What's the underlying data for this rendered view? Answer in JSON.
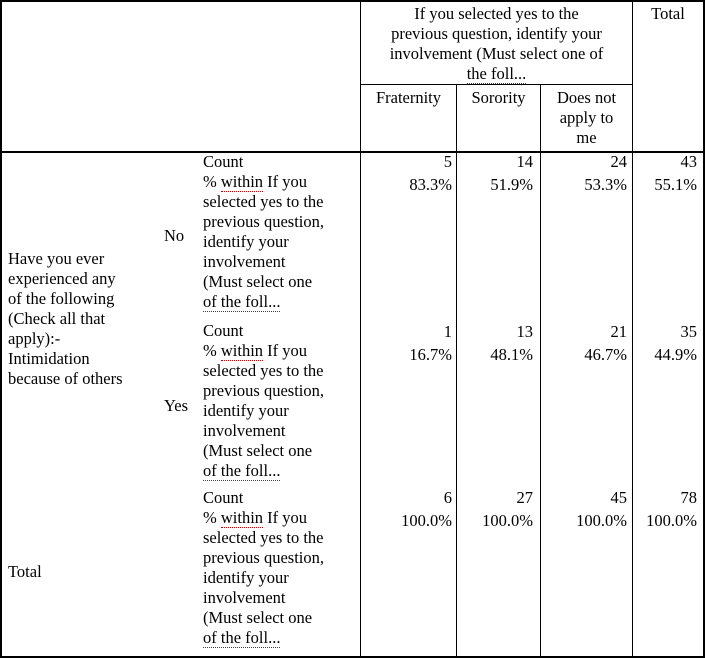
{
  "header": {
    "group_title_lines": [
      "If you selected yes to the",
      "previous question, identify your",
      "involvement (Must select one of",
      "the foll..."
    ],
    "total": "Total",
    "columns": [
      {
        "lines": [
          "Fraternity"
        ]
      },
      {
        "lines": [
          "Sorority"
        ]
      },
      {
        "lines": [
          "Does not",
          "apply to",
          "me"
        ]
      }
    ]
  },
  "row_group_label_lines": [
    "Have you ever",
    "experienced any",
    "of the following",
    "(Check all that",
    "apply):-",
    "Intimidation",
    "because of others"
  ],
  "stat_labels": {
    "count": "Count",
    "pct_lines": [
      "% within If you",
      "selected yes to the",
      "previous question,",
      "identify your",
      "involvement",
      "(Must select one",
      "of the foll..."
    ]
  },
  "rows": [
    {
      "label": "No",
      "counts": [
        "5",
        "14",
        "24",
        "43"
      ],
      "percents": [
        "83.3%",
        "51.9%",
        "53.3%",
        "55.1%"
      ]
    },
    {
      "label": "Yes",
      "counts": [
        "1",
        "13",
        "21",
        "35"
      ],
      "percents": [
        "16.7%",
        "48.1%",
        "46.7%",
        "44.9%"
      ]
    },
    {
      "label": "Total",
      "counts": [
        "6",
        "27",
        "45",
        "78"
      ],
      "percents": [
        "100.0%",
        "100.0%",
        "100.0%",
        "100.0%"
      ]
    }
  ]
}
